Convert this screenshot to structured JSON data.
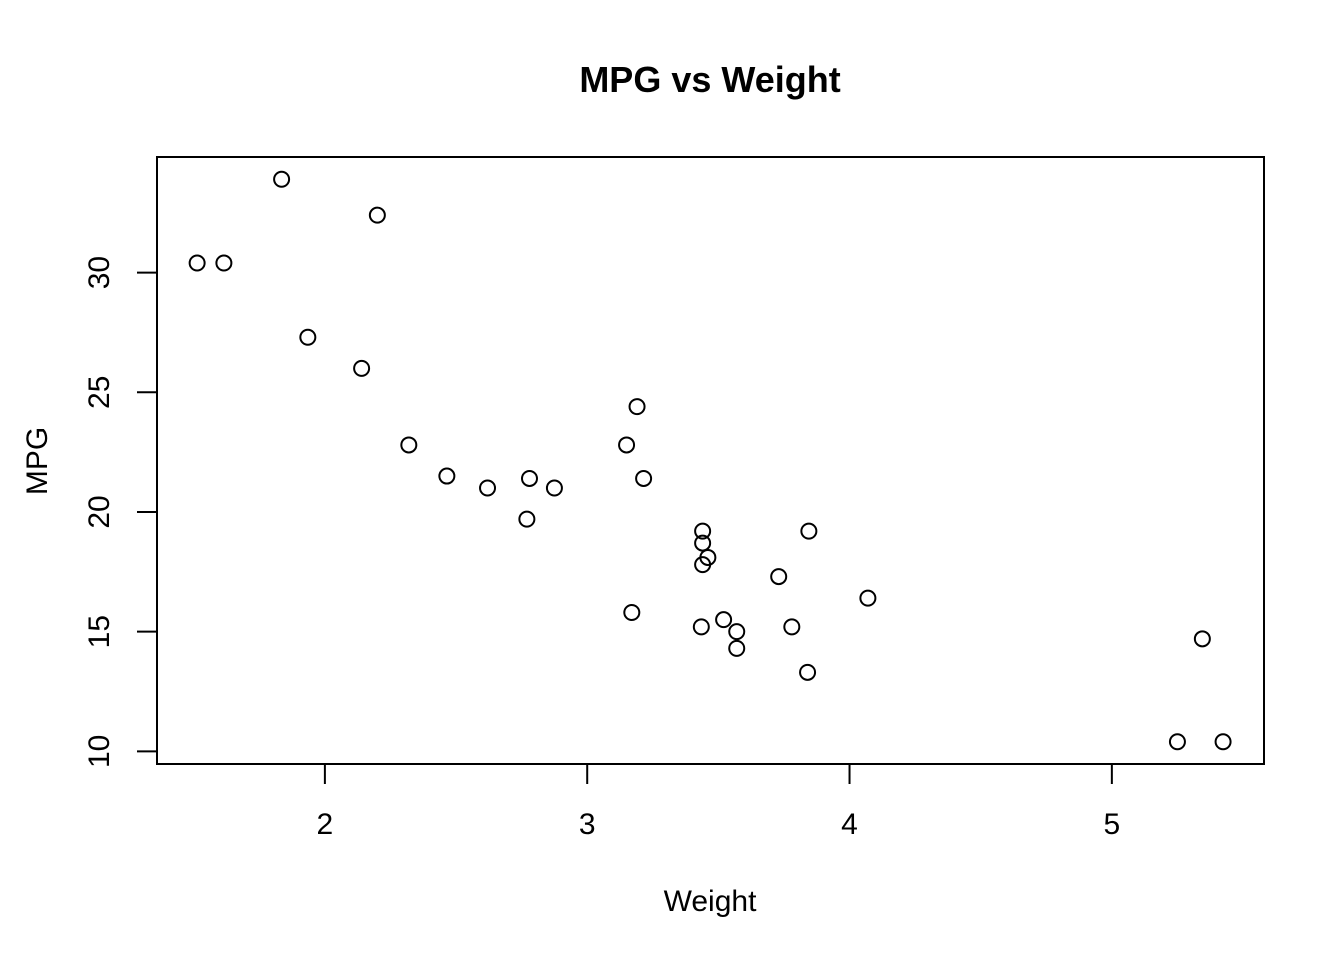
{
  "chart_data": {
    "type": "scatter",
    "title": "MPG vs Weight",
    "xlabel": "Weight",
    "ylabel": "MPG",
    "xlim": [
      1.36,
      5.58
    ],
    "ylim": [
      9.47,
      34.83
    ],
    "x_ticks": [
      2,
      3,
      4,
      5
    ],
    "x_tick_labels": [
      "2",
      "3",
      "4",
      "5"
    ],
    "y_ticks": [
      10,
      15,
      20,
      25,
      30
    ],
    "y_tick_labels": [
      "10",
      "15",
      "20",
      "25",
      "30"
    ],
    "grid": false,
    "legend": false,
    "marker": "open-circle",
    "point_color": "#000000",
    "points": [
      {
        "x": 2.62,
        "y": 21.0
      },
      {
        "x": 2.875,
        "y": 21.0
      },
      {
        "x": 2.32,
        "y": 22.8
      },
      {
        "x": 3.215,
        "y": 21.4
      },
      {
        "x": 3.44,
        "y": 18.7
      },
      {
        "x": 3.46,
        "y": 18.1
      },
      {
        "x": 3.57,
        "y": 14.3
      },
      {
        "x": 3.19,
        "y": 24.4
      },
      {
        "x": 3.15,
        "y": 22.8
      },
      {
        "x": 3.44,
        "y": 19.2
      },
      {
        "x": 3.44,
        "y": 17.8
      },
      {
        "x": 4.07,
        "y": 16.4
      },
      {
        "x": 3.73,
        "y": 17.3
      },
      {
        "x": 3.78,
        "y": 15.2
      },
      {
        "x": 5.25,
        "y": 10.4
      },
      {
        "x": 5.424,
        "y": 10.4
      },
      {
        "x": 5.345,
        "y": 14.7
      },
      {
        "x": 2.2,
        "y": 32.4
      },
      {
        "x": 1.615,
        "y": 30.4
      },
      {
        "x": 1.835,
        "y": 33.9
      },
      {
        "x": 2.465,
        "y": 21.5
      },
      {
        "x": 3.52,
        "y": 15.5
      },
      {
        "x": 3.435,
        "y": 15.2
      },
      {
        "x": 3.84,
        "y": 13.3
      },
      {
        "x": 3.845,
        "y": 19.2
      },
      {
        "x": 1.935,
        "y": 27.3
      },
      {
        "x": 2.14,
        "y": 26.0
      },
      {
        "x": 1.513,
        "y": 30.4
      },
      {
        "x": 3.17,
        "y": 15.8
      },
      {
        "x": 2.77,
        "y": 19.7
      },
      {
        "x": 3.57,
        "y": 15.0
      },
      {
        "x": 2.78,
        "y": 21.4
      }
    ]
  }
}
